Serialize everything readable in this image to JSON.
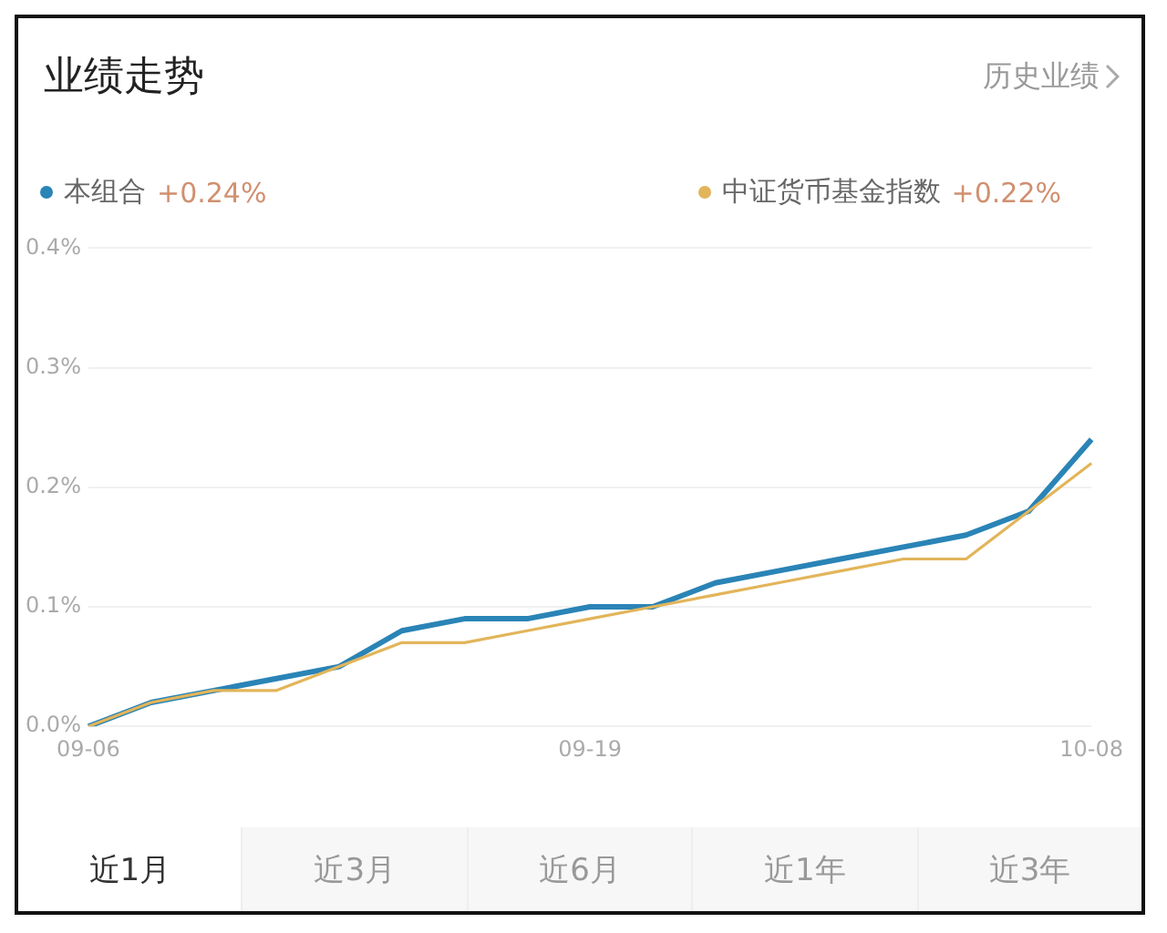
{
  "chart_data": {
    "type": "line",
    "title": "业绩走势",
    "categories": [
      "09-06",
      null,
      null,
      null,
      null,
      null,
      null,
      null,
      "09-19",
      null,
      null,
      null,
      null,
      null,
      null,
      null,
      "10-08"
    ],
    "series": [
      {
        "name": "本组合",
        "color": "#2a84b6",
        "values": [
          0,
          0.02,
          0.03,
          0.04,
          0.05,
          0.08,
          0.09,
          0.09,
          0.1,
          0.1,
          0.12,
          0.13,
          0.14,
          0.15,
          0.16,
          0.18,
          0.24
        ]
      },
      {
        "name": "中证货币基金指数",
        "color": "#e2b55a",
        "values": [
          0,
          0.02,
          0.03,
          0.03,
          0.05,
          0.07,
          0.07,
          0.08,
          0.09,
          0.1,
          0.11,
          0.12,
          0.13,
          0.14,
          0.14,
          0.18,
          0.22
        ]
      }
    ],
    "ylim": [
      0,
      0.4
    ],
    "yticks": [
      {
        "value": 0,
        "label": "0.0%"
      },
      {
        "value": 0.1,
        "label": "0.1%"
      },
      {
        "value": 0.2,
        "label": "0.2%"
      },
      {
        "value": 0.3,
        "label": "0.3%"
      },
      {
        "value": 0.4,
        "label": "0.4%"
      }
    ],
    "grid": "y",
    "legend": "top",
    "marker": "none",
    "line_style": "solid",
    "annotations": [
      "历史业绩",
      "+0.24%",
      "+0.22%",
      "近1月",
      "近3月",
      "近6月",
      "近1年",
      "近3年"
    ]
  }
}
